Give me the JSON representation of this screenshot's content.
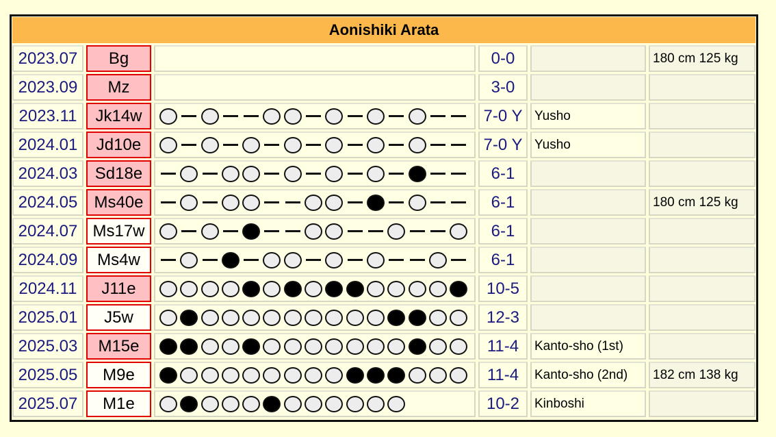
{
  "title": "Aonishiki Arata",
  "legend": {
    "o": "win",
    "x": "loss",
    "-": "no bout"
  },
  "rows": [
    {
      "date": "2023.07",
      "rank": "Bg",
      "rank_style": "pink",
      "bouts": "",
      "record": "0-0",
      "prize": "",
      "body": "180 cm 125 kg"
    },
    {
      "date": "2023.09",
      "rank": "Mz",
      "rank_style": "pink",
      "bouts": "",
      "record": "3-0",
      "prize": "",
      "body": ""
    },
    {
      "date": "2023.11",
      "rank": "Jk14w",
      "rank_style": "pink",
      "bouts": "o-o--oo-o-o-o--",
      "record": "7-0 Y",
      "prize": "Yusho",
      "body": ""
    },
    {
      "date": "2024.01",
      "rank": "Jd10e",
      "rank_style": "pink",
      "bouts": "o-o-o-o-o-o-o--",
      "record": "7-0 Y",
      "prize": "Yusho",
      "body": ""
    },
    {
      "date": "2024.03",
      "rank": "Sd18e",
      "rank_style": "pink",
      "bouts": "-o-oo-o-o-o-x--",
      "record": "6-1",
      "prize": "",
      "body": ""
    },
    {
      "date": "2024.05",
      "rank": "Ms40e",
      "rank_style": "pink",
      "bouts": "-o-oo--oo-x-o--",
      "record": "6-1",
      "prize": "",
      "body": "180 cm 125 kg"
    },
    {
      "date": "2024.07",
      "rank": "Ms17w",
      "rank_style": "white",
      "bouts": "o-o-x--oo--o--o",
      "record": "6-1",
      "prize": "",
      "body": ""
    },
    {
      "date": "2024.09",
      "rank": "Ms4w",
      "rank_style": "white",
      "bouts": "-o-x-oo-o-o--o-",
      "record": "6-1",
      "prize": "",
      "body": ""
    },
    {
      "date": "2024.11",
      "rank": "J11e",
      "rank_style": "pink",
      "bouts": "ooooxoxoxxoooox",
      "record": "10-5",
      "prize": "",
      "body": ""
    },
    {
      "date": "2025.01",
      "rank": "J5w",
      "rank_style": "white",
      "bouts": "oxoooooooooxxoo",
      "record": "12-3",
      "prize": "",
      "body": ""
    },
    {
      "date": "2025.03",
      "rank": "M15e",
      "rank_style": "pink",
      "bouts": "xxooxoooooooxoo",
      "record": "11-4",
      "prize": "Kanto-sho (1st)",
      "body": ""
    },
    {
      "date": "2025.05",
      "rank": "M9e",
      "rank_style": "white",
      "bouts": "xooooooooxxxooo",
      "record": "11-4",
      "prize": "Kanto-sho (2nd)",
      "body": "182 cm 138 kg"
    },
    {
      "date": "2025.07",
      "rank": "M1e",
      "rank_style": "white",
      "bouts": "oxoooxoooooo",
      "record": "10-2",
      "prize": "Kinboshi",
      "body": ""
    }
  ]
}
